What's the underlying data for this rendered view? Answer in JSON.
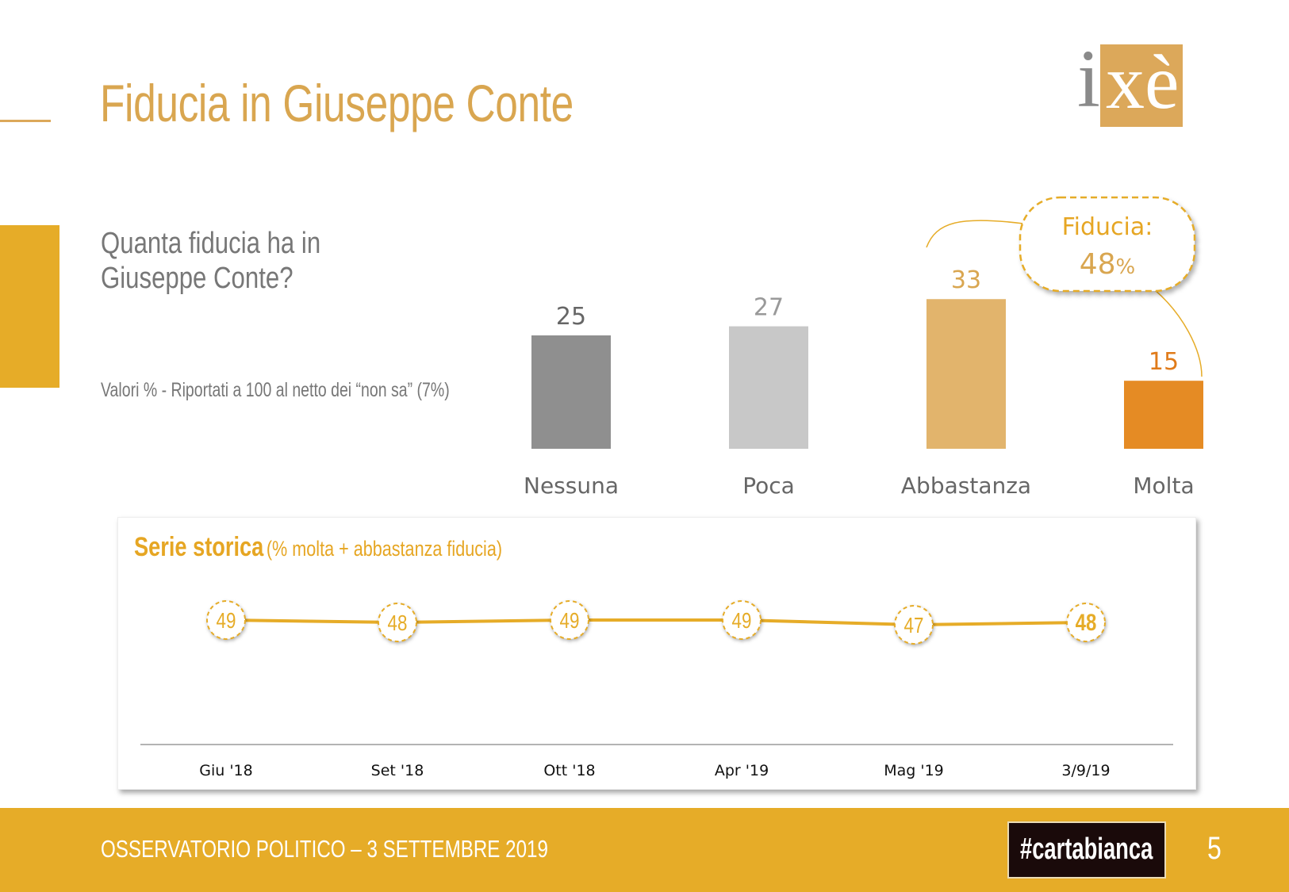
{
  "header": {
    "title": "Fiducia in Giuseppe Conte",
    "logo_text": "ixè"
  },
  "question": "Quanta fiducia ha in Giuseppe Conte?",
  "note": "Valori % - Riportati a 100 al netto dei “non sa” (7%)",
  "callout": {
    "label": "Fiducia:",
    "value": "48",
    "unit": "%"
  },
  "chart_data": [
    {
      "type": "bar",
      "categories": [
        "Nessuna",
        "Poca",
        "Abbastanza",
        "Molta"
      ],
      "values": [
        25,
        27,
        33,
        15
      ],
      "colors": [
        "#8f8f8f",
        "#c8c8c8",
        "#e2b46c",
        "#e58b24"
      ],
      "label_colors": [
        "#666666",
        "#999999",
        "#d9a650",
        "#e07b1a"
      ],
      "ylim": [
        0,
        40
      ]
    },
    {
      "type": "line",
      "title": "Serie storica",
      "subtitle": "(% molta + abbastanza fiducia)",
      "categories": [
        "Giu '18",
        "Set '18",
        "Ott '18",
        "Apr '19",
        "Mag '19",
        "3/9/19"
      ],
      "values": [
        49,
        48,
        49,
        49,
        47,
        48
      ],
      "color": "#e6ac28",
      "highlight_last": true
    }
  ],
  "footer": {
    "text": "OSSERVATORIO POLITICO – 3 SETTEMBRE 2019",
    "badge": "#cartabianca",
    "page": "5"
  }
}
